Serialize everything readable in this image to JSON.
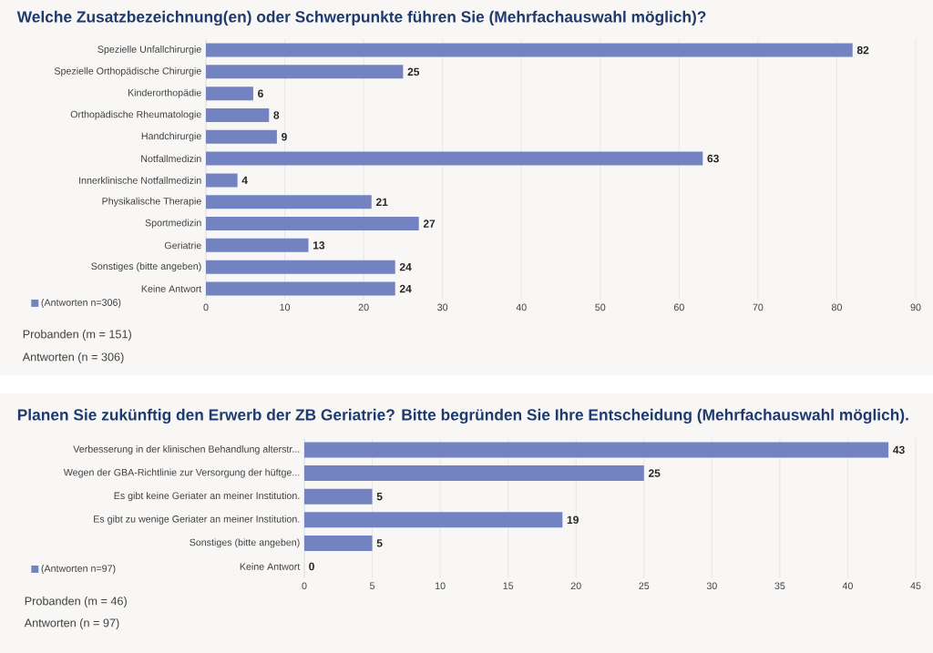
{
  "chart_data": [
    {
      "type": "bar",
      "orientation": "horizontal",
      "title": "Welche Zusatzbezeichnung(en) oder Schwerpunkte führen Sie (Mehrfachauswahl möglich)?",
      "categories": [
        "Spezielle Unfallchirurgie",
        "Spezielle Orthopädische Chirurgie",
        "Kinderorthopädie",
        "Orthopädische Rheumatologie",
        "Handchirurgie",
        "Notfallmedizin",
        "Innerklinische Notfallmedizin",
        "Physikalische Therapie",
        "Sportmedizin",
        "Geriatrie",
        "Sonstiges (bitte angeben)",
        "Keine Antwort"
      ],
      "series": [
        {
          "name": "(Antworten n=306)",
          "color": "#7383c1",
          "values": [
            82,
            25,
            6,
            8,
            9,
            63,
            4,
            21,
            27,
            13,
            24,
            24
          ]
        }
      ],
      "xlim": [
        0,
        90
      ],
      "xticks": [
        0,
        10,
        20,
        30,
        40,
        50,
        60,
        70,
        80,
        90
      ],
      "grid": "x",
      "legend": "bottom left",
      "data_labels": true,
      "annotations": [
        "Probanden (m = 151)",
        "Antworten (n = 306)"
      ]
    },
    {
      "type": "bar",
      "orientation": "horizontal",
      "title": "Planen Sie zukünftig den Erwerb der ZB Geriatrie? Bitte begründen Sie Ihre Entscheidung (Mehrfachauswahl möglich).",
      "categories": [
        "Verbesserung in der klinischen Behandlung alterstr...",
        "Wegen der GBA-Richtlinie zur Versorgung der hüftge...",
        "Es gibt keine Geriater an meiner Institution.",
        "Es gibt zu wenige Geriater an meiner Institution.",
        "Sonstiges (bitte angeben)",
        "Keine Antwort"
      ],
      "series": [
        {
          "name": "(Antworten n=97)",
          "color": "#7383c1",
          "values": [
            43,
            25,
            5,
            19,
            5,
            0
          ]
        }
      ],
      "xlim": [
        0,
        45
      ],
      "xticks": [
        0,
        5,
        10,
        15,
        20,
        25,
        30,
        35,
        40,
        45
      ],
      "grid": "x",
      "legend": "bottom left",
      "data_labels": true,
      "annotations": [
        "Probanden (m = 46)",
        "Antworten (n = 97)"
      ]
    }
  ]
}
